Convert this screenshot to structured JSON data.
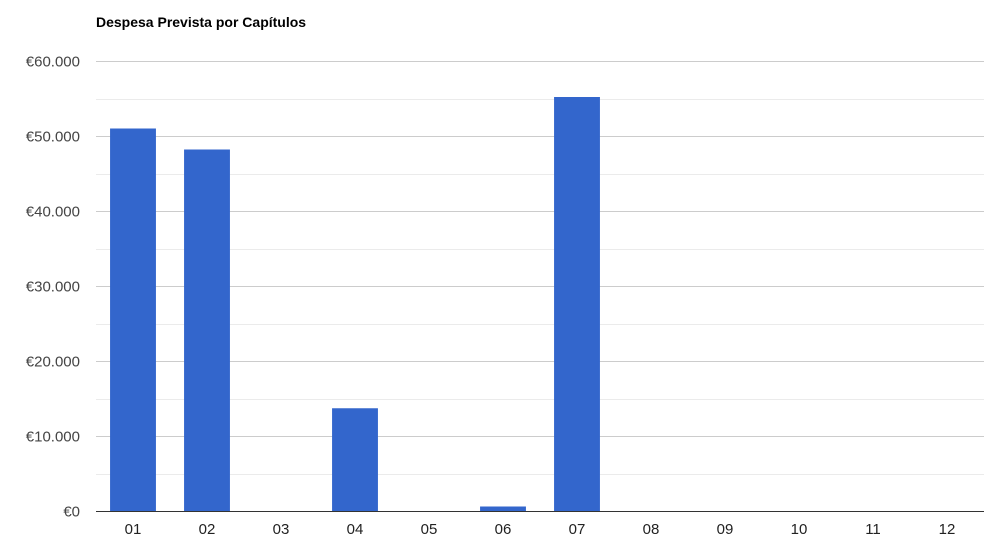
{
  "chart_data": {
    "type": "bar",
    "title": "Despesa Prevista por Capítulos",
    "xlabel": "",
    "ylabel": "",
    "categories": [
      "01",
      "02",
      "03",
      "04",
      "05",
      "06",
      "07",
      "08",
      "09",
      "10",
      "11",
      "12"
    ],
    "values": [
      51000,
      48200,
      0,
      13700,
      0,
      600,
      55200,
      0,
      0,
      0,
      0,
      0
    ],
    "ylim": [
      0,
      60000
    ],
    "major_ticks": [
      0,
      10000,
      20000,
      30000,
      40000,
      50000,
      60000
    ],
    "tick_labels": [
      "€0",
      "€10.000",
      "€20.000",
      "€30.000",
      "€40.000",
      "€50.000",
      "€60.000"
    ],
    "minor_gridlines": true,
    "grid": true,
    "legend": "none",
    "colors": {
      "bar": "#3366cc",
      "major_grid": "#cccccc",
      "minor_grid": "#ebebeb",
      "baseline": "#333333"
    }
  }
}
